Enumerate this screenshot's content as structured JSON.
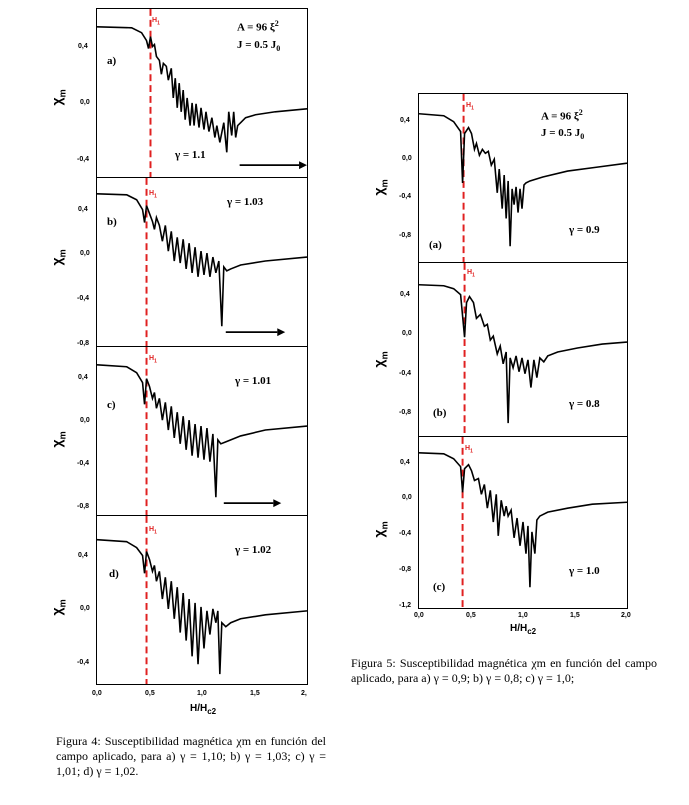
{
  "figure4": {
    "panels": [
      {
        "letter": "a)",
        "params_line1": "A = 96 ξ",
        "params_sup": "2",
        "params_line2": "J = 0.5 J",
        "params_sub": "0",
        "gamma": "γ = 1.1"
      },
      {
        "letter": "b)",
        "gamma": "γ = 1.03"
      },
      {
        "letter": "c)",
        "gamma": "γ = 1.01"
      },
      {
        "letter": "d)",
        "gamma": "γ = 1.02"
      }
    ],
    "ylabel": "χ",
    "ylabel_sub": "m",
    "xlabel": "H/H",
    "xlabel_sub": "c2",
    "marker_label": "H",
    "marker_sub": "1",
    "yticks_a": [
      "0,4",
      "0,0",
      "-0,4"
    ],
    "yticks_b": [
      "0,4",
      "0,0",
      "-0,4",
      "-0,8"
    ],
    "yticks_c": [
      "0,4",
      "0,0",
      "-0,4",
      "-0,8"
    ],
    "yticks_d": [
      "0,4",
      "0,0",
      "-0,4"
    ],
    "xticks": [
      "0,0",
      "0,5",
      "1,0",
      "1,5",
      "2,"
    ],
    "caption": "Figura 4: Susceptibilidad magnética χm en función del campo aplicado, para a) γ = 1,10; b) γ = 1,03; c) γ = 1,01; d) γ = 1,02."
  },
  "figure5": {
    "panels": [
      {
        "letter": "(a)",
        "params_line1": "A = 96 ξ",
        "params_sup": "2",
        "params_line2": "J = 0.5 J",
        "params_sub": "0",
        "gamma": "γ = 0.9"
      },
      {
        "letter": "(b)",
        "gamma": "γ = 0.8"
      },
      {
        "letter": "(c)",
        "gamma": "γ = 1.0"
      }
    ],
    "ylabel": "χ",
    "ylabel_sub": "m",
    "xlabel": "H/H",
    "xlabel_sub": "c2",
    "marker_label": "H",
    "marker_sub": "1",
    "yticks_a": [
      "0,4",
      "0,0",
      "-0,4",
      "-0,8"
    ],
    "yticks_b": [
      "0,4",
      "0,0",
      "-0,4",
      "-0,8"
    ],
    "yticks_c": [
      "0,4",
      "0,0",
      "-0,4",
      "-0,8",
      "-1,2"
    ],
    "xticks": [
      "0,0",
      "0,5",
      "1,0",
      "1,5",
      "2,0"
    ],
    "caption": "Figura 5: Susceptibilidad magnética χm en función del campo aplicado, para a) γ = 0,9; b) γ = 0,8; c) γ = 1,0;"
  },
  "colors": {
    "curve": "#000000",
    "marker": "#e02020"
  }
}
